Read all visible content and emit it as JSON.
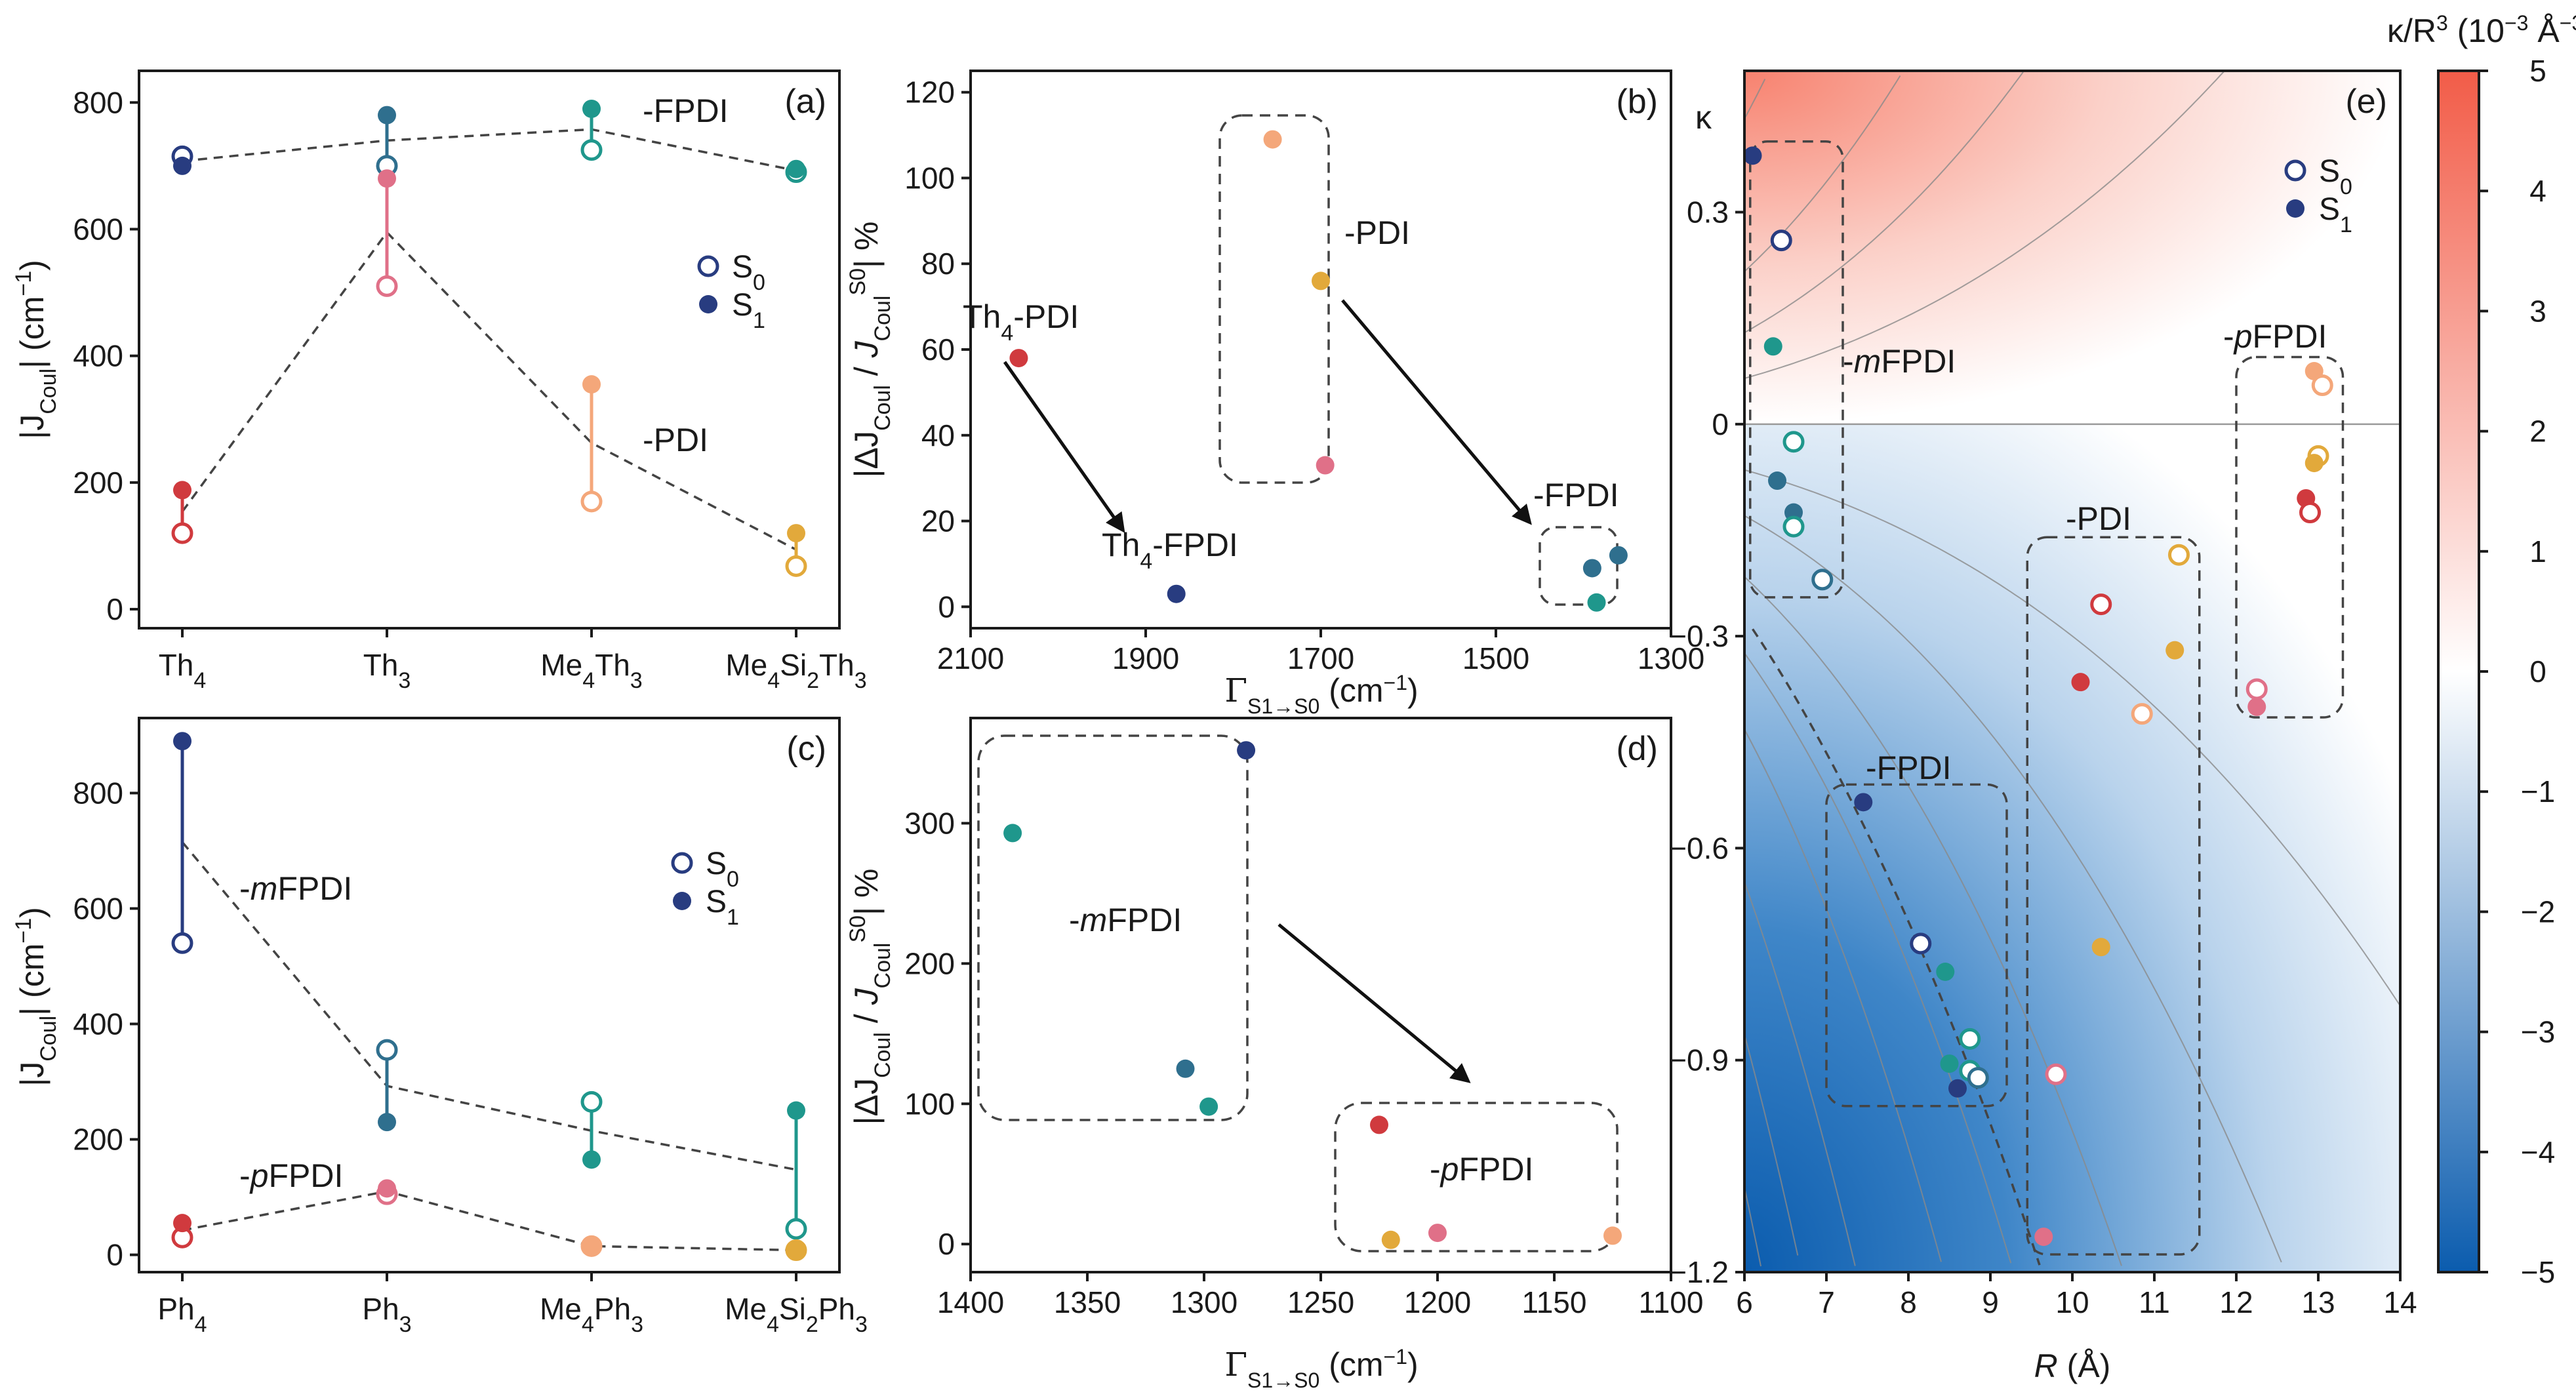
{
  "colors": {
    "navy": "#283c80",
    "blue_teal": "#2f6f8e",
    "teal": "#1f978c",
    "red": "#d03a3e",
    "pink": "#e07088",
    "peach": "#f4a77a",
    "gold": "#e2a93b",
    "dash": "#444444"
  },
  "chart_data": [
    {
      "id": "a",
      "type": "scatter",
      "panel_label": "(a)",
      "ylabel_main": "|J",
      "ylabel_sub": "Coul",
      "ylabel_unit": "| (cm",
      "ylabel_sup": "−1",
      "ylim": [
        -30,
        850
      ],
      "yticks": [
        0,
        200,
        400,
        600,
        800
      ],
      "categories": [
        {
          "main": "Th",
          "sub": "4"
        },
        {
          "main": "Th",
          "sub": "3"
        },
        {
          "main": "Me",
          "sub": "4",
          "main2": "Th",
          "sub2": "3"
        },
        {
          "main": "Me",
          "sub": "4",
          "main2": "Si",
          "sub2": "2",
          "main3": "Th",
          "sub3": "3"
        }
      ],
      "legend": {
        "s0": "S",
        "s0_sub": "0",
        "s1": "S",
        "s1_sub": "1"
      },
      "annotations": [
        {
          "text": "-FPDI"
        },
        {
          "text": "-PDI"
        }
      ],
      "series": [
        {
          "name": "FPDI",
          "s0": [
            715,
            700,
            725,
            690
          ],
          "s1": [
            700,
            780,
            790,
            695
          ],
          "colors": [
            "navy",
            "blue_teal",
            "teal",
            "teal"
          ]
        },
        {
          "name": "PDI",
          "s0": [
            120,
            510,
            170,
            68
          ],
          "s1": [
            188,
            680,
            355,
            120
          ],
          "colors": [
            "red",
            "pink",
            "peach",
            "gold"
          ]
        }
      ]
    },
    {
      "id": "b",
      "type": "scatter",
      "panel_label": "(b)",
      "ylabel": "|ΔJ",
      "xlim": [
        2100,
        1300
      ],
      "ylim": [
        -5,
        125
      ],
      "xticks": [
        2100,
        1900,
        1700,
        1500,
        1300
      ],
      "yticks": [
        0,
        20,
        40,
        60,
        80,
        100,
        120
      ],
      "xlabel_main": "Γ",
      "xlabel_sub": "S1→S0",
      "xlabel_unit": " (cm",
      "xlabel_sup": "−1",
      "annotations": [
        {
          "text": "Th",
          "sub": "4",
          "rest": "-PDI"
        },
        {
          "text": "Th",
          "sub": "4",
          "rest": "-FPDI"
        },
        {
          "text": "-PDI"
        },
        {
          "text": "-FPDI"
        }
      ],
      "points": [
        {
          "x": 2045,
          "y": 58,
          "color": "red"
        },
        {
          "x": 1865,
          "y": 3,
          "color": "navy"
        },
        {
          "x": 1755,
          "y": 109,
          "color": "peach"
        },
        {
          "x": 1700,
          "y": 76,
          "color": "gold"
        },
        {
          "x": 1695,
          "y": 33,
          "color": "pink"
        },
        {
          "x": 1390,
          "y": 9,
          "color": "blue_teal"
        },
        {
          "x": 1385,
          "y": 1,
          "color": "teal"
        },
        {
          "x": 1360,
          "y": 12,
          "color": "blue_teal"
        }
      ]
    },
    {
      "id": "c",
      "type": "scatter",
      "panel_label": "(c)",
      "ylim": [
        -30,
        930
      ],
      "yticks": [
        0,
        200,
        400,
        600,
        800
      ],
      "categories": [
        {
          "main": "Ph",
          "sub": "4"
        },
        {
          "main": "Ph",
          "sub": "3"
        },
        {
          "main": "Me",
          "sub": "4",
          "main2": "Ph",
          "sub2": "3"
        },
        {
          "main": "Me",
          "sub": "4",
          "main2": "Si",
          "sub2": "2",
          "main3": "Ph",
          "sub3": "3"
        }
      ],
      "annotations": [
        {
          "text": "-",
          "ital": "m",
          "rest": "FPDI"
        },
        {
          "text": "-",
          "ital": "p",
          "rest": "FPDI"
        }
      ],
      "series": [
        {
          "name": "mFPDI",
          "s0": [
            540,
            355,
            265,
            45
          ],
          "s1": [
            890,
            230,
            165,
            250
          ],
          "colors": [
            "navy",
            "blue_teal",
            "teal",
            "teal"
          ]
        },
        {
          "name": "pFPDI",
          "s0": [
            30,
            105,
            15,
            8
          ],
          "s1": [
            55,
            115,
            15,
            8
          ],
          "colors": [
            "red",
            "pink",
            "peach",
            "gold"
          ]
        }
      ]
    },
    {
      "id": "d",
      "type": "scatter",
      "panel_label": "(d)",
      "xlim": [
        1400,
        1100
      ],
      "ylim": [
        -20,
        375
      ],
      "xticks": [
        1400,
        1350,
        1300,
        1250,
        1200,
        1150,
        1100
      ],
      "yticks": [
        0,
        100,
        200,
        300
      ],
      "annotations": [
        {
          "text": "-",
          "ital": "m",
          "rest": "FPDI"
        },
        {
          "text": "-",
          "ital": "p",
          "rest": "FPDI"
        }
      ],
      "points": [
        {
          "x": 1382,
          "y": 293,
          "color": "teal"
        },
        {
          "x": 1282,
          "y": 352,
          "color": "navy"
        },
        {
          "x": 1308,
          "y": 125,
          "color": "blue_teal"
        },
        {
          "x": 1298,
          "y": 98,
          "color": "teal"
        },
        {
          "x": 1225,
          "y": 85,
          "color": "red"
        },
        {
          "x": 1220,
          "y": 3,
          "color": "gold"
        },
        {
          "x": 1200,
          "y": 8,
          "color": "pink"
        },
        {
          "x": 1125,
          "y": 6,
          "color": "peach"
        }
      ]
    },
    {
      "id": "e",
      "type": "scatter",
      "panel_label": "(e)",
      "xlim": [
        6,
        14
      ],
      "ylim": [
        -1.2,
        0.5
      ],
      "xticks": [
        6,
        7,
        8,
        9,
        10,
        11,
        12,
        13,
        14
      ],
      "yticks": [
        0.3,
        0,
        -0.3,
        -0.6,
        -0.9,
        -1.2
      ],
      "ytick_labels": [
        "0.3",
        "0",
        "−0.3",
        "−0.6",
        "−0.9",
        "−1.2"
      ],
      "xlabel": "R",
      "xlabel_unit": " (Å)",
      "ylabel": "κ",
      "colorbar": {
        "min": -5,
        "max": 5,
        "ticks": [
          5,
          4,
          3,
          2,
          1,
          0,
          -1,
          -2,
          -3,
          -4,
          -5
        ],
        "tick_labels": [
          "5",
          "4",
          "3",
          "2",
          "1",
          "0",
          "−1",
          "−2",
          "−3",
          "−4",
          "−5"
        ],
        "title_main": "κ/R",
        "title_sup": "3",
        "title_unit": " (10",
        "title_unit_sup": "−3",
        "title_unit2": " Å",
        "title_unit2_sup": "−3",
        "title_end": ")",
        "low_color": "#0b5cae",
        "mid_color": "#ffffff",
        "high_color": "#f25c48"
      },
      "legend": {
        "s0": "S",
        "s0_sub": "0",
        "s1": "S",
        "s1_sub": "1"
      },
      "annotations": [
        {
          "text": "-",
          "ital": "m",
          "rest": "FPDI"
        },
        {
          "text": "-FPDI"
        },
        {
          "text": "-PDI"
        },
        {
          "text": "-",
          "ital": "p",
          "rest": "FPDI"
        }
      ],
      "points": [
        {
          "x": 6.1,
          "y": 0.38,
          "color": "navy",
          "filled": true
        },
        {
          "x": 6.45,
          "y": 0.26,
          "color": "navy",
          "filled": false
        },
        {
          "x": 6.35,
          "y": 0.11,
          "color": "teal",
          "filled": true
        },
        {
          "x": 6.6,
          "y": -0.025,
          "color": "teal",
          "filled": false
        },
        {
          "x": 6.4,
          "y": -0.08,
          "color": "blue_teal",
          "filled": true
        },
        {
          "x": 6.6,
          "y": -0.125,
          "color": "blue_teal",
          "filled": true
        },
        {
          "x": 6.6,
          "y": -0.145,
          "color": "teal",
          "filled": false
        },
        {
          "x": 6.95,
          "y": -0.22,
          "color": "blue_teal",
          "filled": false
        },
        {
          "x": 7.45,
          "y": -0.535,
          "color": "navy",
          "filled": true
        },
        {
          "x": 8.15,
          "y": -0.735,
          "color": "navy",
          "filled": false
        },
        {
          "x": 8.45,
          "y": -0.775,
          "color": "teal",
          "filled": true
        },
        {
          "x": 8.75,
          "y": -0.87,
          "color": "teal",
          "filled": false
        },
        {
          "x": 8.5,
          "y": -0.905,
          "color": "teal",
          "filled": true
        },
        {
          "x": 8.75,
          "y": -0.915,
          "color": "teal",
          "filled": false
        },
        {
          "x": 8.85,
          "y": -0.925,
          "color": "blue_teal",
          "filled": false
        },
        {
          "x": 8.6,
          "y": -0.94,
          "color": "navy",
          "filled": true
        },
        {
          "x": 9.65,
          "y": -1.15,
          "color": "pink",
          "filled": true
        },
        {
          "x": 9.8,
          "y": -0.92,
          "color": "pink",
          "filled": false
        },
        {
          "x": 10.35,
          "y": -0.74,
          "color": "gold",
          "filled": true
        },
        {
          "x": 10.1,
          "y": -0.365,
          "color": "red",
          "filled": true
        },
        {
          "x": 10.35,
          "y": -0.255,
          "color": "red",
          "filled": false
        },
        {
          "x": 10.85,
          "y": -0.41,
          "color": "peach",
          "filled": false
        },
        {
          "x": 11.25,
          "y": -0.32,
          "color": "gold",
          "filled": true
        },
        {
          "x": 11.3,
          "y": -0.185,
          "color": "gold",
          "filled": false
        },
        {
          "x": 12.95,
          "y": 0.075,
          "color": "peach",
          "filled": true
        },
        {
          "x": 13.05,
          "y": 0.055,
          "color": "peach",
          "filled": false
        },
        {
          "x": 13.0,
          "y": -0.045,
          "color": "gold",
          "filled": false
        },
        {
          "x": 12.95,
          "y": -0.055,
          "color": "gold",
          "filled": true
        },
        {
          "x": 12.85,
          "y": -0.105,
          "color": "red",
          "filled": true
        },
        {
          "x": 12.9,
          "y": -0.125,
          "color": "red",
          "filled": false
        },
        {
          "x": 12.25,
          "y": -0.375,
          "color": "pink",
          "filled": false
        },
        {
          "x": 12.25,
          "y": -0.4,
          "color": "pink",
          "filled": true
        }
      ]
    }
  ]
}
